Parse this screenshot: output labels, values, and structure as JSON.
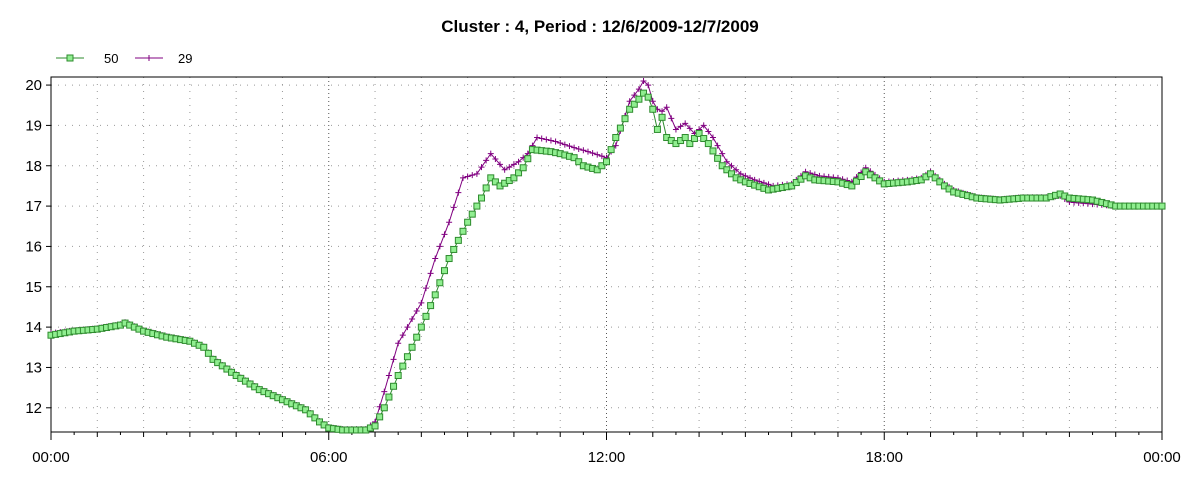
{
  "chart_data": {
    "type": "line",
    "title": "Cluster : 4, Period : 12/6/2009-12/7/2009",
    "xlabel": "",
    "ylabel": "",
    "x_unit": "hour",
    "xlim": [
      0,
      24
    ],
    "ylim": [
      11.4,
      20.2
    ],
    "x_tick_labels": [
      "00:00",
      "06:00",
      "12:00",
      "18:00",
      "00:00"
    ],
    "x_major_ticks": [
      0,
      6,
      12,
      18,
      24
    ],
    "y_ticks": [
      12,
      13,
      14,
      15,
      16,
      17,
      18,
      19,
      20
    ],
    "grid": "dotted",
    "legend_position": "top-left",
    "series": [
      {
        "name": "50",
        "color": "#2e8b2e",
        "fill": "#90ee90",
        "marker": "square",
        "points": [
          [
            0,
            13.8
          ],
          [
            0.5,
            13.9
          ],
          [
            1.0,
            13.95
          ],
          [
            1.5,
            14.05
          ],
          [
            1.6,
            14.1
          ],
          [
            2.0,
            13.9
          ],
          [
            2.5,
            13.75
          ],
          [
            3.0,
            13.65
          ],
          [
            3.3,
            13.5
          ],
          [
            3.5,
            13.2
          ],
          [
            4.0,
            12.8
          ],
          [
            4.5,
            12.45
          ],
          [
            5.0,
            12.2
          ],
          [
            5.5,
            11.95
          ],
          [
            5.8,
            11.65
          ],
          [
            6.0,
            11.5
          ],
          [
            6.3,
            11.45
          ],
          [
            6.8,
            11.45
          ],
          [
            7.0,
            11.55
          ],
          [
            7.2,
            12.0
          ],
          [
            7.5,
            12.8
          ],
          [
            7.8,
            13.5
          ],
          [
            8.0,
            14.0
          ],
          [
            8.3,
            14.8
          ],
          [
            8.6,
            15.7
          ],
          [
            9.0,
            16.6
          ],
          [
            9.3,
            17.2
          ],
          [
            9.5,
            17.7
          ],
          [
            9.7,
            17.5
          ],
          [
            10.0,
            17.7
          ],
          [
            10.2,
            17.95
          ],
          [
            10.4,
            18.4
          ],
          [
            10.8,
            18.35
          ],
          [
            11.0,
            18.3
          ],
          [
            11.3,
            18.2
          ],
          [
            11.5,
            18.0
          ],
          [
            11.8,
            17.9
          ],
          [
            12.0,
            18.1
          ],
          [
            12.2,
            18.7
          ],
          [
            12.5,
            19.4
          ],
          [
            12.7,
            19.65
          ],
          [
            12.8,
            19.8
          ],
          [
            12.9,
            19.7
          ],
          [
            13.0,
            19.4
          ],
          [
            13.1,
            18.9
          ],
          [
            13.2,
            19.2
          ],
          [
            13.3,
            18.7
          ],
          [
            13.5,
            18.55
          ],
          [
            13.7,
            18.7
          ],
          [
            13.8,
            18.55
          ],
          [
            14.0,
            18.8
          ],
          [
            14.2,
            18.55
          ],
          [
            14.5,
            18.0
          ],
          [
            14.8,
            17.7
          ],
          [
            15.0,
            17.6
          ],
          [
            15.5,
            17.4
          ],
          [
            16.0,
            17.5
          ],
          [
            16.3,
            17.75
          ],
          [
            16.5,
            17.65
          ],
          [
            17.0,
            17.6
          ],
          [
            17.3,
            17.5
          ],
          [
            17.6,
            17.85
          ],
          [
            18.0,
            17.55
          ],
          [
            18.5,
            17.6
          ],
          [
            18.8,
            17.65
          ],
          [
            19.0,
            17.8
          ],
          [
            19.3,
            17.5
          ],
          [
            19.5,
            17.35
          ],
          [
            20.0,
            17.2
          ],
          [
            20.5,
            17.15
          ],
          [
            21.0,
            17.2
          ],
          [
            21.5,
            17.2
          ],
          [
            21.8,
            17.3
          ],
          [
            22.0,
            17.2
          ],
          [
            22.5,
            17.15
          ],
          [
            23.0,
            17.0
          ],
          [
            23.5,
            17.0
          ],
          [
            24.0,
            17.0
          ]
        ]
      },
      {
        "name": "29",
        "color": "#800080",
        "marker": "plus",
        "points": [
          [
            0,
            13.85
          ],
          [
            0.5,
            13.92
          ],
          [
            1.0,
            13.97
          ],
          [
            1.5,
            14.07
          ],
          [
            1.6,
            14.12
          ],
          [
            2.0,
            13.92
          ],
          [
            2.5,
            13.77
          ],
          [
            3.0,
            13.67
          ],
          [
            3.3,
            13.52
          ],
          [
            3.5,
            13.22
          ],
          [
            4.0,
            12.82
          ],
          [
            4.5,
            12.47
          ],
          [
            5.0,
            12.22
          ],
          [
            5.5,
            11.97
          ],
          [
            5.8,
            11.67
          ],
          [
            6.0,
            11.52
          ],
          [
            6.3,
            11.47
          ],
          [
            6.8,
            11.47
          ],
          [
            7.0,
            11.65
          ],
          [
            7.2,
            12.4
          ],
          [
            7.5,
            13.6
          ],
          [
            7.8,
            14.2
          ],
          [
            8.0,
            14.6
          ],
          [
            8.3,
            15.7
          ],
          [
            8.6,
            16.6
          ],
          [
            8.9,
            17.7
          ],
          [
            9.2,
            17.8
          ],
          [
            9.5,
            18.3
          ],
          [
            9.8,
            17.9
          ],
          [
            10.1,
            18.1
          ],
          [
            10.3,
            18.3
          ],
          [
            10.5,
            18.7
          ],
          [
            10.9,
            18.6
          ],
          [
            11.3,
            18.45
          ],
          [
            11.6,
            18.35
          ],
          [
            12.0,
            18.2
          ],
          [
            12.2,
            18.5
          ],
          [
            12.5,
            19.6
          ],
          [
            12.7,
            19.9
          ],
          [
            12.85,
            20.2
          ],
          [
            13.0,
            19.6
          ],
          [
            13.15,
            19.3
          ],
          [
            13.3,
            19.45
          ],
          [
            13.5,
            18.9
          ],
          [
            13.7,
            19.05
          ],
          [
            13.9,
            18.8
          ],
          [
            14.1,
            19.0
          ],
          [
            14.3,
            18.7
          ],
          [
            14.6,
            18.1
          ],
          [
            14.9,
            17.8
          ],
          [
            15.2,
            17.65
          ],
          [
            15.6,
            17.5
          ],
          [
            16.0,
            17.55
          ],
          [
            16.3,
            17.85
          ],
          [
            16.6,
            17.75
          ],
          [
            17.0,
            17.7
          ],
          [
            17.3,
            17.6
          ],
          [
            17.6,
            17.95
          ],
          [
            18.0,
            17.6
          ],
          [
            18.5,
            17.65
          ],
          [
            18.8,
            17.7
          ],
          [
            19.0,
            17.85
          ],
          [
            19.3,
            17.55
          ],
          [
            19.5,
            17.4
          ],
          [
            20.0,
            17.22
          ],
          [
            20.5,
            17.17
          ],
          [
            21.0,
            17.22
          ],
          [
            21.5,
            17.22
          ],
          [
            21.8,
            17.25
          ],
          [
            22.0,
            17.1
          ],
          [
            22.5,
            17.05
          ],
          [
            23.0,
            17.0
          ],
          [
            23.5,
            17.0
          ],
          [
            24.0,
            17.02
          ]
        ]
      }
    ]
  }
}
